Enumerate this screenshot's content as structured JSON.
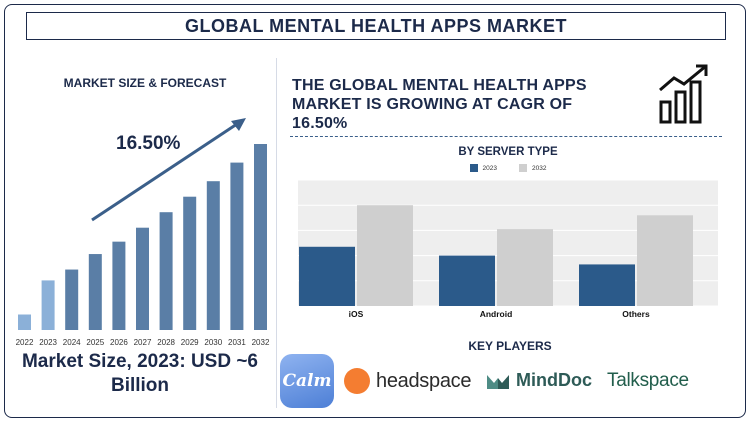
{
  "title": "GLOBAL MENTAL HEALTH APPS MARKET",
  "left_panel": {
    "subtitle": "MARKET SIZE & FORECAST",
    "cagr_label": "16.50%",
    "market_size_text": "Market Size, 2023: USD ~6 Billion"
  },
  "headline": "THE GLOBAL MENTAL HEALTH APPS MARKET IS GROWING AT CAGR OF 16.50%",
  "server_section": {
    "title": "BY SERVER TYPE"
  },
  "key_players": {
    "title": "KEY PLAYERS",
    "logos": [
      {
        "text": "Calm",
        "icon": "calm-logo"
      },
      {
        "text": "headspace",
        "icon": "headspace-logo"
      },
      {
        "text": "MindDoc",
        "icon": "minddoc-logo"
      },
      {
        "text": "Talkspace",
        "icon": "talkspace-logo"
      }
    ]
  },
  "icons": {
    "growth": "growth-chart-icon",
    "trend_arrow": "trend-arrow-icon"
  },
  "colors": {
    "navy": "#1c2a4a",
    "forecast_bar": "#5a7ea6",
    "highlight_bar": "#8bb0d8",
    "series_2023": "#2b5a8a",
    "series_2032": "#cfcfcf",
    "headspace_orange": "#f47d31",
    "minddoc_green": "#2e5b57",
    "talkspace_green": "#225e4c"
  },
  "chart_data": [
    {
      "type": "bar",
      "categories": [
        "2022",
        "2023",
        "2024",
        "2025",
        "2026",
        "2027",
        "2028",
        "2029",
        "2030",
        "2031",
        "2032"
      ],
      "values": [
        1.0,
        3.2,
        3.9,
        4.9,
        5.7,
        6.6,
        7.6,
        8.6,
        9.6,
        10.8,
        12.0
      ],
      "highlight_colors": [
        "#8bb0d8",
        "#8bb0d8",
        "#5a7ea6",
        "#5a7ea6",
        "#5a7ea6",
        "#5a7ea6",
        "#5a7ea6",
        "#5a7ea6",
        "#5a7ea6",
        "#5a7ea6",
        "#5a7ea6"
      ],
      "title": "",
      "xlabel": "",
      "ylabel": "",
      "grid": false,
      "annotation": "16.50%"
    },
    {
      "type": "bar",
      "categories": [
        "iOS",
        "Android",
        "Others"
      ],
      "series": [
        {
          "name": "2023",
          "values": [
            47,
            40,
            33
          ],
          "color": "#2b5a8a"
        },
        {
          "name": "2032",
          "values": [
            80,
            61,
            72
          ],
          "color": "#cfcfcf"
        }
      ],
      "title": "BY SERVER TYPE",
      "ylim": [
        0,
        100
      ],
      "grid": true,
      "legend": "top-center"
    }
  ]
}
